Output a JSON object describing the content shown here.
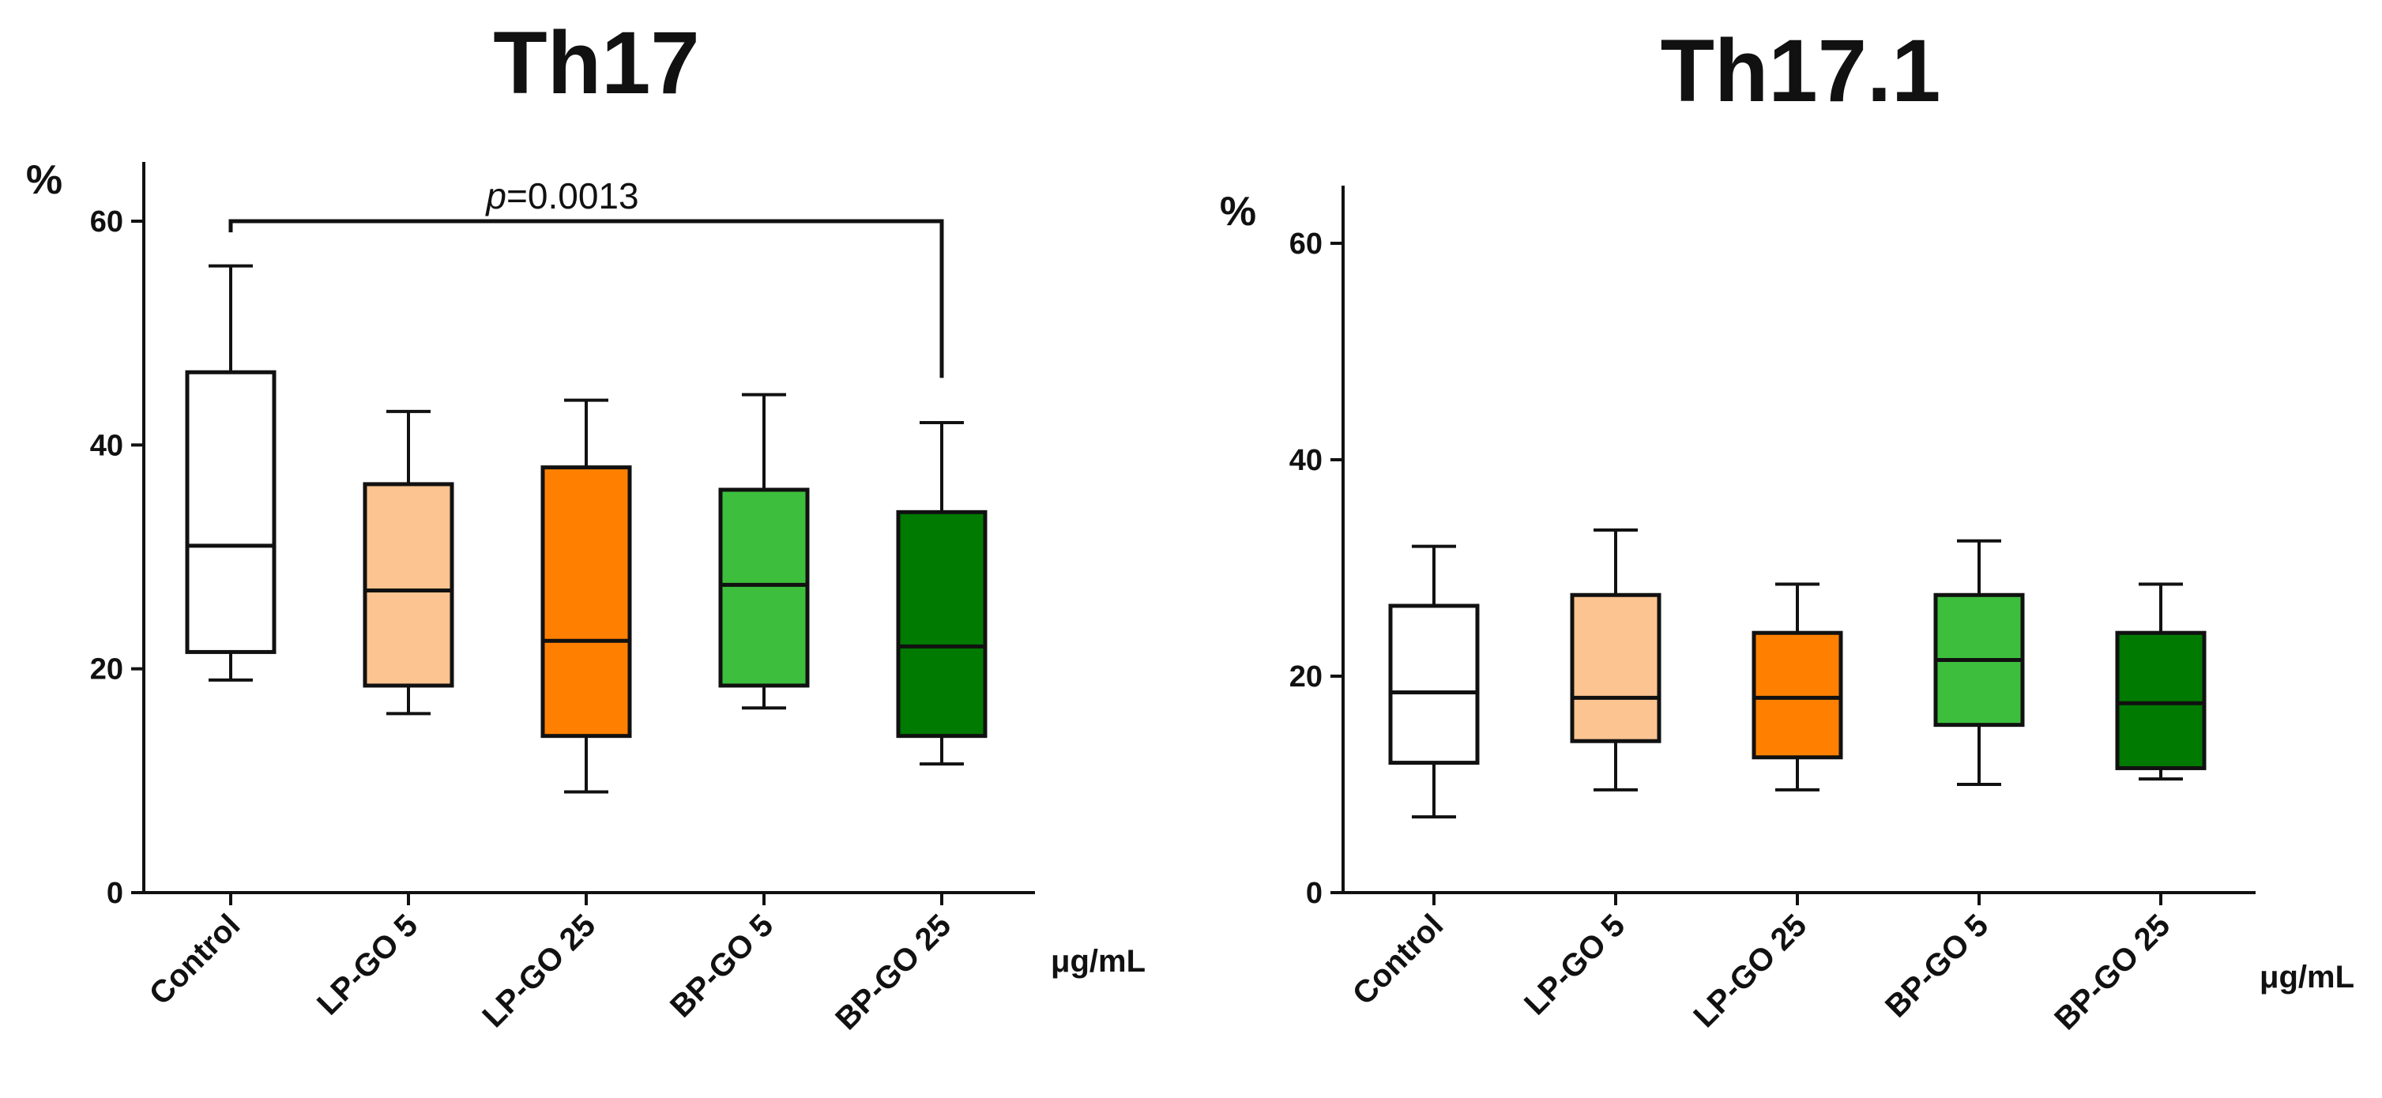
{
  "chart_data": [
    {
      "type": "box",
      "title": "Th17",
      "ylabel": "%",
      "xunit": "μg/mL",
      "ylim": [
        0,
        65
      ],
      "yticks": [
        "0",
        "20",
        "40",
        "60"
      ],
      "categories": [
        "Control",
        "LP-GO 5",
        "LP-GO 25",
        "BP-GO 5",
        "BP-GO 25"
      ],
      "colors": [
        "#ffffff",
        "#fbc490",
        "#ff8000",
        "#3dbf3d",
        "#007a00"
      ],
      "boxes": [
        {
          "min": 19,
          "q1": 21.5,
          "median": 31,
          "q3": 46.5,
          "max": 56
        },
        {
          "min": 16,
          "q1": 18.5,
          "median": 27,
          "q3": 36.5,
          "max": 43
        },
        {
          "min": 9,
          "q1": 14,
          "median": 22.5,
          "q3": 38,
          "max": 44
        },
        {
          "min": 16.5,
          "q1": 18.5,
          "median": 27.5,
          "q3": 36,
          "max": 44.5
        },
        {
          "min": 11.5,
          "q1": 14,
          "median": 22,
          "q3": 34,
          "max": 42
        }
      ],
      "annotation": {
        "italic": "p",
        "text": "=0.0013",
        "from": 0,
        "to": 4,
        "y": 60,
        "left_end": 59,
        "right_end": 46
      }
    },
    {
      "type": "box",
      "title": "Th17.1",
      "ylabel": "%",
      "xunit": "μg/mL",
      "ylim": [
        0,
        65
      ],
      "yticks": [
        "0",
        "20",
        "40",
        "60"
      ],
      "categories": [
        "Control",
        "LP-GO 5",
        "LP-GO 25",
        "BP-GO 5",
        "BP-GO 25"
      ],
      "colors": [
        "#ffffff",
        "#fbc490",
        "#ff8000",
        "#3dbf3d",
        "#007a00"
      ],
      "boxes": [
        {
          "min": 7,
          "q1": 12,
          "median": 18.5,
          "q3": 26.5,
          "max": 32
        },
        {
          "min": 9.5,
          "q1": 14,
          "median": 18,
          "q3": 27.5,
          "max": 33.5
        },
        {
          "min": 9.5,
          "q1": 12.5,
          "median": 18,
          "q3": 24,
          "max": 28.5
        },
        {
          "min": 10,
          "q1": 15.5,
          "median": 21.5,
          "q3": 27.5,
          "max": 32.5
        },
        {
          "min": 10.5,
          "q1": 11.5,
          "median": 17.5,
          "q3": 24,
          "max": 28.5
        }
      ]
    }
  ]
}
